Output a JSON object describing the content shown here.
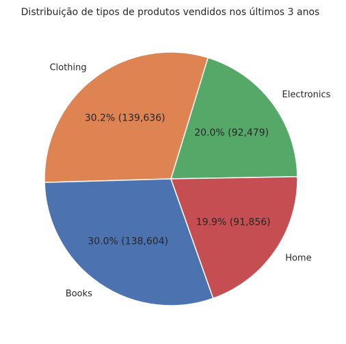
{
  "chart_data": {
    "type": "pie",
    "title": "Distribuição de tipos de produtos vendidos nos últimos 3 anos",
    "slices": [
      {
        "label": "Electronics",
        "value": 92479,
        "percent_label": "20.0% (92,479)",
        "color": "#55a868"
      },
      {
        "label": "Clothing",
        "value": 139636,
        "percent_label": "30.2% (139,636)",
        "color": "#dd8452"
      },
      {
        "label": "Books",
        "value": 138604,
        "percent_label": "30.0% (138,604)",
        "color": "#4c72b0"
      },
      {
        "label": "Home",
        "value": 91856,
        "percent_label": "19.9% (91,856)",
        "color": "#c44e52"
      }
    ]
  }
}
